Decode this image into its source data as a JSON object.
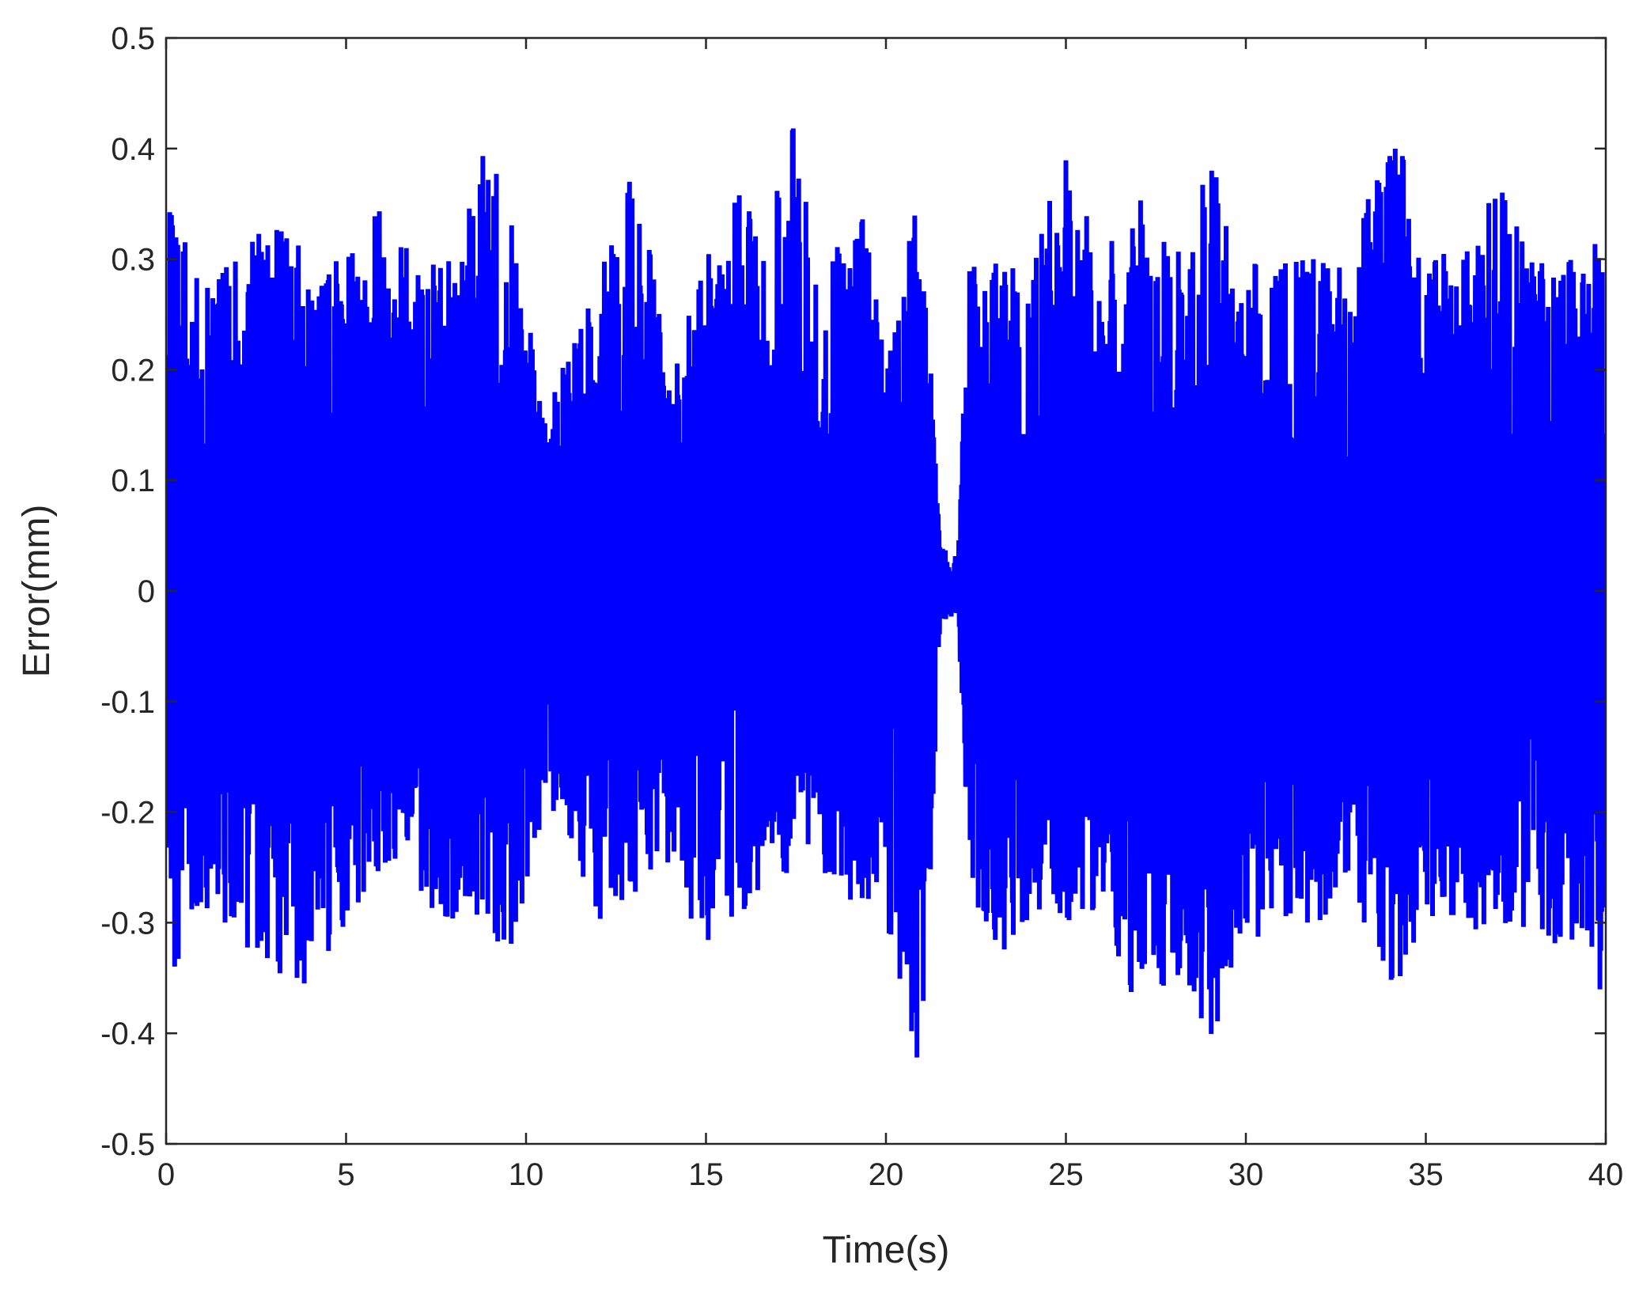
{
  "chart_data": {
    "type": "line",
    "title": "",
    "xlabel": "Time(s)",
    "ylabel": "Error(mm)",
    "xlim": [
      0,
      40
    ],
    "ylim": [
      -0.5,
      0.5
    ],
    "xticks": [
      0,
      5,
      10,
      15,
      20,
      25,
      30,
      35,
      40
    ],
    "yticks": [
      -0.5,
      -0.4,
      -0.3,
      -0.2,
      -0.1,
      0,
      0.1,
      0.2,
      0.3,
      0.4,
      0.5
    ],
    "xtick_labels": [
      "0",
      "5",
      "10",
      "15",
      "20",
      "25",
      "30",
      "35",
      "40"
    ],
    "ytick_labels": [
      "-0.5",
      "-0.4",
      "-0.3",
      "-0.2",
      "-0.1",
      "0",
      "0.1",
      "0.2",
      "0.3",
      "0.4",
      "0.5"
    ],
    "grid": false,
    "legend": "none",
    "series": [
      {
        "color": "#0000ff",
        "envelope": {
          "x": [
            0,
            0.1,
            0.3,
            1,
            2,
            3,
            4,
            5,
            6,
            7,
            8,
            8.8,
            9.5,
            10.5,
            11,
            12,
            12.9,
            13.5,
            14,
            14.5,
            15.3,
            15.9,
            16.5,
            17.5,
            18,
            19,
            19.5,
            20,
            20.5,
            20.8,
            21.2,
            21.5,
            22,
            22.3,
            23,
            24,
            25,
            26,
            27,
            28,
            29,
            30,
            31,
            32,
            33,
            34,
            35,
            36,
            37,
            38,
            39,
            40
          ],
          "upper": [
            0.2,
            0.47,
            0.34,
            0.28,
            0.3,
            0.34,
            0.3,
            0.3,
            0.35,
            0.3,
            0.3,
            0.4,
            0.38,
            0.15,
            0.2,
            0.3,
            0.38,
            0.3,
            0.18,
            0.25,
            0.34,
            0.44,
            0.3,
            0.43,
            0.3,
            0.36,
            0.33,
            0.2,
            0.35,
            0.34,
            0.25,
            0.04,
            0.03,
            0.3,
            0.3,
            0.3,
            0.4,
            0.3,
            0.36,
            0.3,
            0.39,
            0.3,
            0.3,
            0.3,
            0.3,
            0.44,
            0.32,
            0.3,
            0.37,
            0.3,
            0.3,
            0.33
          ],
          "lower": [
            -0.25,
            -0.34,
            -0.34,
            -0.3,
            -0.32,
            -0.35,
            -0.37,
            -0.3,
            -0.25,
            -0.28,
            -0.3,
            -0.3,
            -0.35,
            -0.2,
            -0.2,
            -0.3,
            -0.28,
            -0.25,
            -0.25,
            -0.3,
            -0.35,
            -0.3,
            -0.27,
            -0.25,
            -0.25,
            -0.28,
            -0.3,
            -0.3,
            -0.37,
            -0.44,
            -0.33,
            -0.03,
            -0.02,
            -0.25,
            -0.35,
            -0.3,
            -0.3,
            -0.3,
            -0.38,
            -0.35,
            -0.41,
            -0.32,
            -0.3,
            -0.3,
            -0.28,
            -0.37,
            -0.3,
            -0.32,
            -0.3,
            -0.32,
            -0.32,
            -0.38
          ]
        }
      }
    ]
  }
}
